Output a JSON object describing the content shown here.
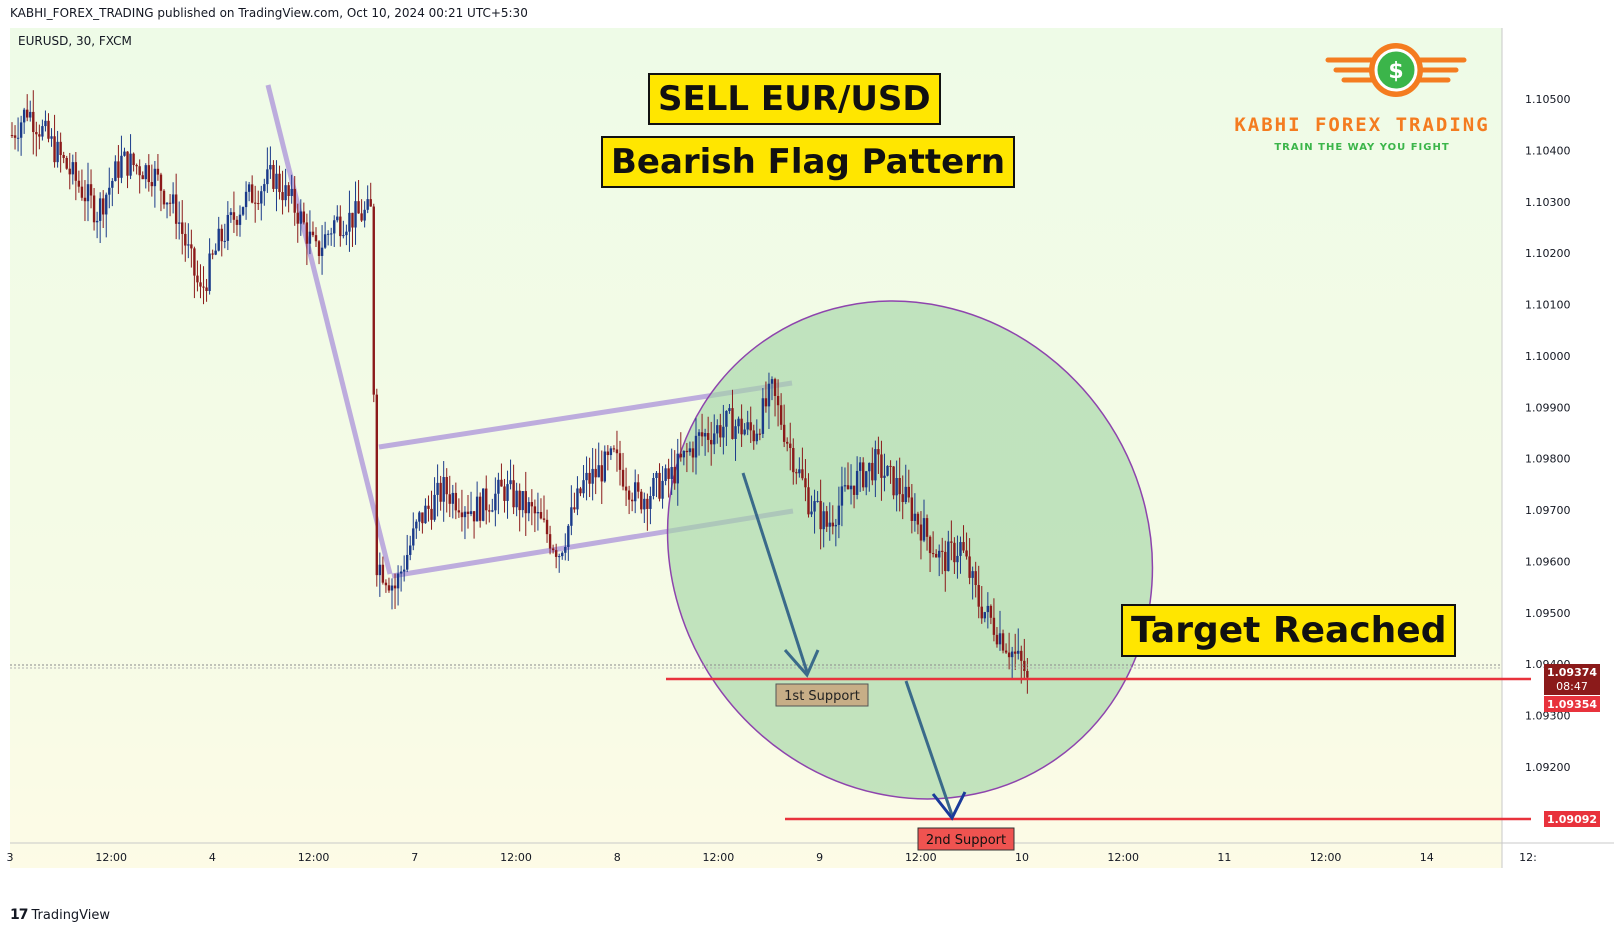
{
  "header": {
    "published_line": "KABHI_FOREX_TRADING published on TradingView.com, Oct 10, 2024 00:21 UTC+5:30",
    "symbol_line": "EURUSD, 30, FXCM"
  },
  "footer": {
    "logo_mark": "17",
    "logo_text": "TradingView"
  },
  "brand": {
    "name": "KABHI FOREX TRADING",
    "tagline": "TRAIN THE WAY YOU FIGHT",
    "icon": "dollar-coin-icon"
  },
  "annotations": {
    "sell": "SELL EUR/USD",
    "pattern": "Bearish Flag Pattern",
    "target": "Target Reached",
    "support1": "1st Support",
    "support2": "2nd Support"
  },
  "price_axis": {
    "labels": [
      "1.10500",
      "1.10400",
      "1.10300",
      "1.10200",
      "1.10100",
      "1.10000",
      "1.09900",
      "1.09800",
      "1.09700",
      "1.09600",
      "1.09500",
      "1.09400",
      "1.09300",
      "1.09200"
    ],
    "current_price": "1.09374",
    "countdown": "08:47",
    "support1_price": "1.09354",
    "support2_price": "1.09092"
  },
  "time_axis": {
    "labels": [
      "3",
      "12:00",
      "4",
      "12:00",
      "7",
      "12:00",
      "8",
      "12:00",
      "9",
      "12:00",
      "10",
      "12:00",
      "11",
      "12:00",
      "14",
      "12:"
    ]
  },
  "colors": {
    "up_candle": "#1a3a8a",
    "down_candle": "#8b1a1a",
    "support_line": "#e8323c",
    "flag_channel": "#b39ddb",
    "ellipse_fill": "#a5d6a7",
    "ellipse_stroke": "#8e44ad",
    "arrow": "#3a6a8a",
    "callout_bg": "#ffe600",
    "brand_orange": "#f47c20",
    "brand_green": "#3bb54a"
  },
  "chart_data": {
    "type": "candlestick",
    "symbol": "EURUSD",
    "timeframe": "30",
    "ylim": [
      1.0905,
      1.1058
    ],
    "support_levels": [
      1.09354,
      1.09092
    ],
    "last_price": 1.09374,
    "ohlc_path": [
      {
        "t": 0,
        "p": 1.1043
      },
      {
        "t": 5,
        "p": 1.1048
      },
      {
        "t": 12,
        "p": 1.1042
      },
      {
        "t": 20,
        "p": 1.1035
      },
      {
        "t": 28,
        "p": 1.1028
      },
      {
        "t": 36,
        "p": 1.1038
      },
      {
        "t": 46,
        "p": 1.1036
      },
      {
        "t": 54,
        "p": 1.1028
      },
      {
        "t": 62,
        "p": 1.1012
      },
      {
        "t": 68,
        "p": 1.1022
      },
      {
        "t": 76,
        "p": 1.103
      },
      {
        "t": 86,
        "p": 1.1035
      },
      {
        "t": 94,
        "p": 1.1028
      },
      {
        "t": 100,
        "p": 1.102
      },
      {
        "t": 106,
        "p": 1.1026
      },
      {
        "t": 118,
        "p": 1.1028
      },
      {
        "t": 120,
        "p": 1.096
      },
      {
        "t": 126,
        "p": 1.0955
      },
      {
        "t": 134,
        "p": 1.0968
      },
      {
        "t": 142,
        "p": 1.0974
      },
      {
        "t": 152,
        "p": 1.097
      },
      {
        "t": 162,
        "p": 1.0974
      },
      {
        "t": 172,
        "p": 1.0969
      },
      {
        "t": 180,
        "p": 1.0962
      },
      {
        "t": 188,
        "p": 1.0975
      },
      {
        "t": 198,
        "p": 1.098
      },
      {
        "t": 206,
        "p": 1.0972
      },
      {
        "t": 216,
        "p": 1.0976
      },
      {
        "t": 226,
        "p": 1.0984
      },
      {
        "t": 236,
        "p": 1.0987
      },
      {
        "t": 244,
        "p": 1.0985
      },
      {
        "t": 250,
        "p": 1.0993
      },
      {
        "t": 256,
        "p": 1.0982
      },
      {
        "t": 262,
        "p": 1.0972
      },
      {
        "t": 268,
        "p": 1.0967
      },
      {
        "t": 276,
        "p": 1.0975
      },
      {
        "t": 284,
        "p": 1.0979
      },
      {
        "t": 292,
        "p": 1.0974
      },
      {
        "t": 300,
        "p": 1.0966
      },
      {
        "t": 306,
        "p": 1.096
      },
      {
        "t": 312,
        "p": 1.0963
      },
      {
        "t": 318,
        "p": 1.0952
      },
      {
        "t": 326,
        "p": 1.0945
      },
      {
        "t": 334,
        "p": 1.0938
      }
    ]
  }
}
